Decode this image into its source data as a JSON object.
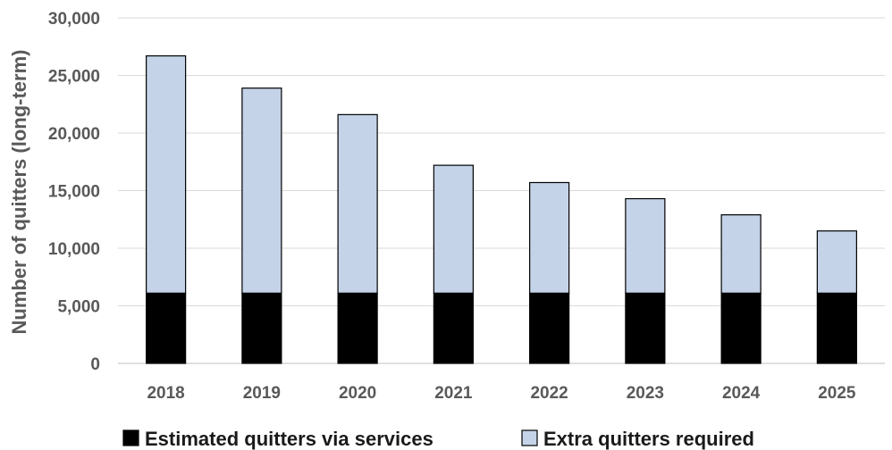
{
  "chart_data": {
    "type": "bar",
    "stacked": true,
    "categories": [
      "2018",
      "2019",
      "2020",
      "2021",
      "2022",
      "2023",
      "2024",
      "2025"
    ],
    "series": [
      {
        "name": "Estimated quitters via services",
        "values": [
          6100,
          6100,
          6100,
          6100,
          6100,
          6100,
          6100,
          6100
        ],
        "color": "#000000"
      },
      {
        "name": "Extra quitters required",
        "values": [
          20600,
          17800,
          15500,
          11100,
          9600,
          8200,
          6800,
          5400
        ],
        "color": "#c4d3e8"
      }
    ],
    "ylabel": "Number of quitters (long-term)",
    "ylim": [
      0,
      30000
    ],
    "yticks": [
      0,
      5000,
      10000,
      15000,
      20000,
      25000,
      30000
    ],
    "ytick_labels": [
      "0",
      "5,000",
      "10,000",
      "15,000",
      "20,000",
      "25,000",
      "30,000"
    ],
    "grid": true,
    "legend_position": "bottom"
  }
}
